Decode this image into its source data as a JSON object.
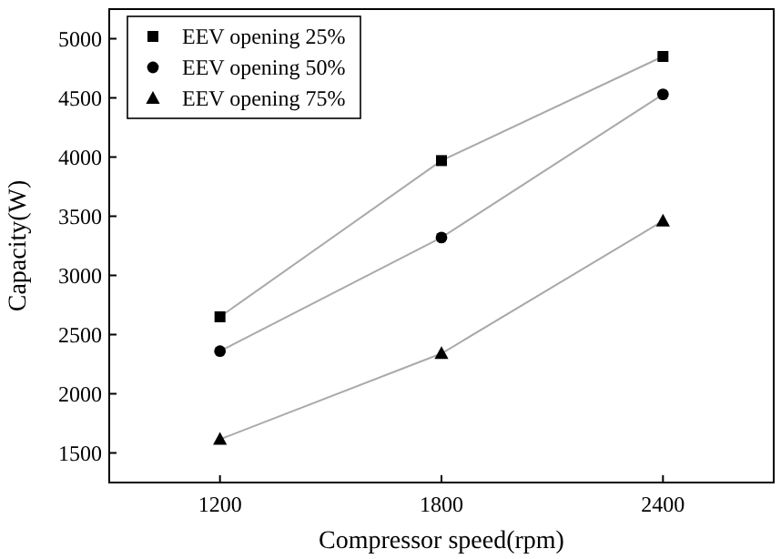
{
  "chart_data": {
    "type": "line",
    "xlabel": "Compressor speed(rpm)",
    "ylabel": "Capacity(W)",
    "x": [
      1200,
      1800,
      2400
    ],
    "xlim": [
      900,
      2700
    ],
    "xticks": [
      1200,
      1800,
      2400
    ],
    "ylim": [
      1250,
      5250
    ],
    "yticks": [
      1500,
      2000,
      2500,
      3000,
      3500,
      4000,
      4500,
      5000
    ],
    "legend": "top left",
    "grid": false,
    "series": [
      {
        "name": "EEV opening 25%",
        "color": "#000000",
        "marker": "square",
        "values": [
          2650,
          3970,
          4850
        ]
      },
      {
        "name": "EEV opening 50%",
        "color": "#000000",
        "marker": "circle",
        "values": [
          2360,
          3320,
          4530
        ]
      },
      {
        "name": "EEV opening 75%",
        "color": "#000000",
        "marker": "triangle",
        "values": [
          1615,
          2340,
          3460
        ]
      }
    ]
  }
}
